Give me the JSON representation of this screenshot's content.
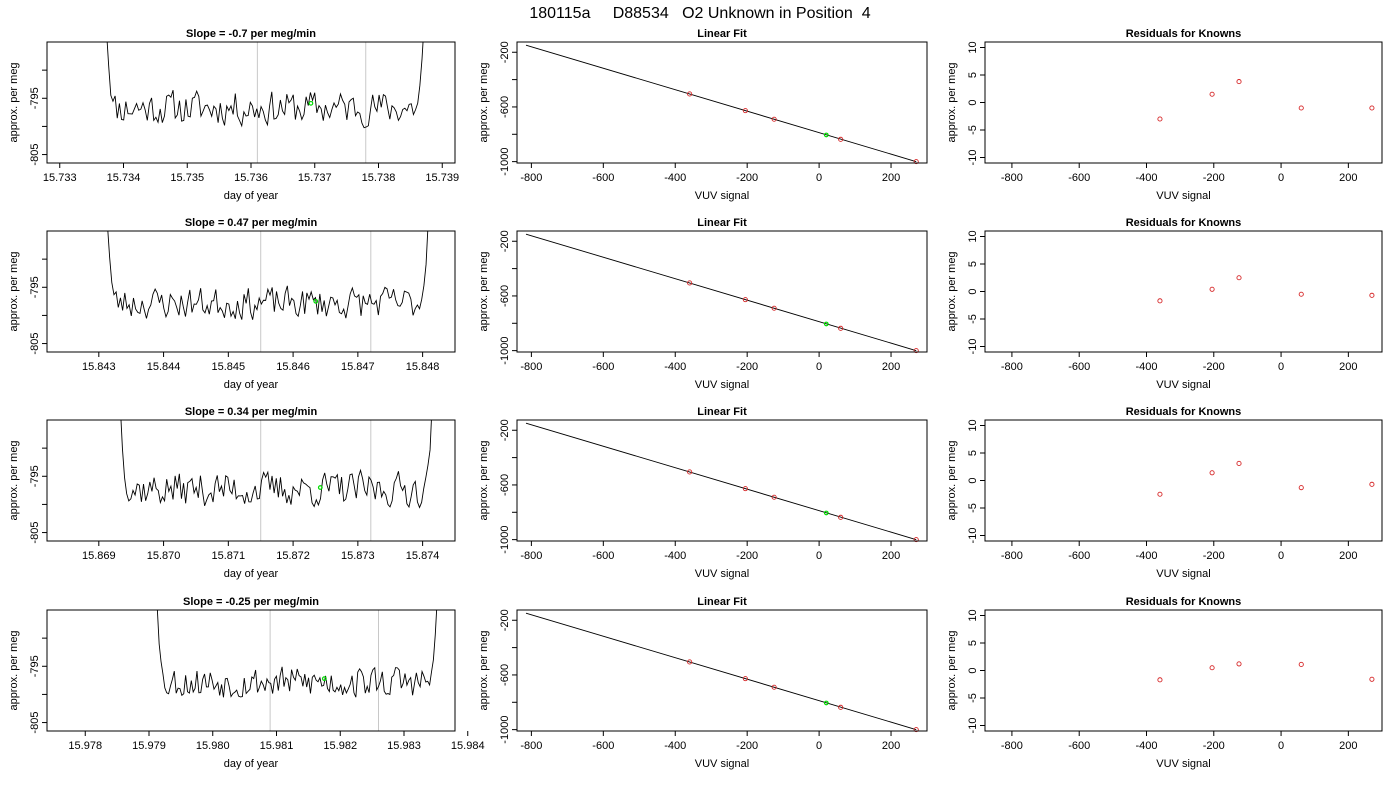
{
  "figure_title": "180115a     D88534   O2 Unknown in Position  4",
  "chart_data": [
    {
      "type": "line",
      "row": 0,
      "col": 0,
      "title": "Slope =  -0.7  per meg/min",
      "xlabel": "day of year",
      "ylabel": "approx. per meg",
      "xlim": [
        15.7328,
        15.7392
      ],
      "ylim": [
        -806.5,
        -785.0
      ],
      "x_ticks": [
        15.733,
        15.734,
        15.735,
        15.736,
        15.737,
        15.738,
        15.739
      ],
      "x_tick_labels": [
        "15.733",
        "15.734",
        "15.735",
        "15.736",
        "15.737",
        "15.738",
        "15.739"
      ],
      "y_ticks": [
        -795,
        -805
      ],
      "y_tick_labels": [
        "-795",
        "-805"
      ],
      "y_minor_ticks": [
        -790,
        -800
      ],
      "series_start": 15.7337,
      "series_end": 15.73875,
      "series_baseline": -796.7,
      "series_amplitude": 1.3,
      "seed": 11,
      "vlines": [
        15.7361,
        15.7378
      ],
      "marker": {
        "x": 15.73694,
        "y": -795.9,
        "color": "#00dd00"
      }
    },
    {
      "type": "line",
      "row": 0,
      "col": 1,
      "title": "Linear Fit",
      "xlabel": "VUV signal",
      "ylabel": "approx. per meg",
      "xlim": [
        -840,
        300
      ],
      "ylim": [
        -1010,
        -125
      ],
      "x_ticks": [
        -800,
        -600,
        -400,
        -200,
        0,
        200
      ],
      "x_tick_labels": [
        "-800",
        "-600",
        "-400",
        "-200",
        "0",
        "200"
      ],
      "y_ticks": [
        -200,
        -600,
        -1000
      ],
      "y_tick_labels": [
        "-200",
        "-600",
        "-1000"
      ],
      "y_minor_ticks": [
        -400,
        -800
      ],
      "fit_line": {
        "x": [
          -815,
          270
        ],
        "y": [
          -148,
          -1000
        ]
      },
      "points": {
        "x": [
          -360,
          -205,
          -125,
          60,
          270
        ],
        "y": [
          -505,
          -627,
          -690,
          -837,
          -1000
        ]
      },
      "point_color": "#d62728",
      "marker": {
        "x": 20,
        "y": -805,
        "color": "#00dd00"
      }
    },
    {
      "type": "scatter",
      "row": 0,
      "col": 2,
      "title": "Residuals for Knowns",
      "xlabel": "VUV signal",
      "ylabel": "approx. per meg",
      "xlim": [
        -880,
        300
      ],
      "ylim": [
        -11,
        11
      ],
      "x_ticks": [
        -800,
        -600,
        -400,
        -200,
        0,
        200
      ],
      "x_tick_labels": [
        "-800",
        "-600",
        "-400",
        "-200",
        "0",
        "200"
      ],
      "y_ticks": [
        10,
        5,
        0,
        -5,
        -10
      ],
      "y_tick_labels": [
        "10",
        "5",
        "0",
        "-5",
        "-10"
      ],
      "points": {
        "x": [
          -360,
          -205,
          -125,
          60,
          270
        ],
        "y": [
          -3.0,
          1.5,
          3.8,
          -1.0,
          -1.0
        ]
      },
      "point_color": "#d62728"
    },
    {
      "type": "line",
      "row": 1,
      "col": 0,
      "title": "Slope =  0.47  per meg/min",
      "xlabel": "day of year",
      "ylabel": "approx. per meg",
      "xlim": [
        15.8422,
        15.8485
      ],
      "ylim": [
        -806.5,
        -785.0
      ],
      "x_ticks": [
        15.843,
        15.844,
        15.845,
        15.846,
        15.847,
        15.848
      ],
      "x_tick_labels": [
        "15.843",
        "15.844",
        "15.845",
        "15.846",
        "15.847",
        "15.848"
      ],
      "y_ticks": [
        -795,
        -805
      ],
      "y_tick_labels": [
        "-795",
        "-805"
      ],
      "y_minor_ticks": [
        -790,
        -800
      ],
      "series_start": 15.8431,
      "series_end": 15.84812,
      "series_baseline": -797.8,
      "series_amplitude": 1.2,
      "seed": 23,
      "vlines": [
        15.8455,
        15.8472
      ],
      "marker": {
        "x": 15.84635,
        "y": -797.5,
        "color": "#00dd00"
      }
    },
    {
      "type": "line",
      "row": 1,
      "col": 1,
      "title": "Linear Fit",
      "xlabel": "VUV signal",
      "ylabel": "approx. per meg",
      "xlim": [
        -840,
        300
      ],
      "ylim": [
        -1010,
        -125
      ],
      "x_ticks": [
        -800,
        -600,
        -400,
        -200,
        0,
        200
      ],
      "x_tick_labels": [
        "-800",
        "-600",
        "-400",
        "-200",
        "0",
        "200"
      ],
      "y_ticks": [
        -200,
        -600,
        -1000
      ],
      "y_tick_labels": [
        "-200",
        "-600",
        "-1000"
      ],
      "y_minor_ticks": [
        -400,
        -800
      ],
      "fit_line": {
        "x": [
          -815,
          270
        ],
        "y": [
          -148,
          -1000
        ]
      },
      "points": {
        "x": [
          -360,
          -205,
          -125,
          60,
          270
        ],
        "y": [
          -505,
          -627,
          -690,
          -837,
          -1000
        ]
      },
      "point_color": "#d62728",
      "marker": {
        "x": 20,
        "y": -805,
        "color": "#00dd00"
      }
    },
    {
      "type": "scatter",
      "row": 1,
      "col": 2,
      "title": "Residuals for Knowns",
      "xlabel": "VUV signal",
      "ylabel": "approx. per meg",
      "xlim": [
        -880,
        300
      ],
      "ylim": [
        -11,
        11
      ],
      "x_ticks": [
        -800,
        -600,
        -400,
        -200,
        0,
        200
      ],
      "x_tick_labels": [
        "-800",
        "-600",
        "-400",
        "-200",
        "0",
        "200"
      ],
      "y_ticks": [
        10,
        5,
        0,
        -5,
        -10
      ],
      "y_tick_labels": [
        "10",
        "5",
        "0",
        "-5",
        "-10"
      ],
      "points": {
        "x": [
          -360,
          -205,
          -125,
          60,
          270
        ],
        "y": [
          -1.7,
          0.4,
          2.5,
          -0.5,
          -0.7
        ]
      },
      "point_color": "#d62728"
    },
    {
      "type": "line",
      "row": 2,
      "col": 0,
      "title": "Slope =  0.34  per meg/min",
      "xlabel": "day of year",
      "ylabel": "approx. per meg",
      "xlim": [
        15.8682,
        15.8745
      ],
      "ylim": [
        -806.5,
        -785.0
      ],
      "x_ticks": [
        15.869,
        15.87,
        15.871,
        15.872,
        15.873,
        15.874
      ],
      "x_tick_labels": [
        "15.869",
        "15.870",
        "15.871",
        "15.872",
        "15.873",
        "15.874"
      ],
      "y_ticks": [
        -795,
        -805
      ],
      "y_tick_labels": [
        "-795",
        "-805"
      ],
      "y_minor_ticks": [
        -790,
        -800
      ],
      "series_start": 15.8693,
      "series_end": 15.87418,
      "series_baseline": -797.3,
      "series_amplitude": 1.3,
      "seed": 37,
      "vlines": [
        15.8715,
        15.8732
      ],
      "marker": {
        "x": 15.87242,
        "y": -797.0,
        "color": "#00dd00"
      }
    },
    {
      "type": "line",
      "row": 2,
      "col": 1,
      "title": "Linear Fit",
      "xlabel": "VUV signal",
      "ylabel": "approx. per meg",
      "xlim": [
        -840,
        300
      ],
      "ylim": [
        -1010,
        -125
      ],
      "x_ticks": [
        -800,
        -600,
        -400,
        -200,
        0,
        200
      ],
      "x_tick_labels": [
        "-800",
        "-600",
        "-400",
        "-200",
        "0",
        "200"
      ],
      "y_ticks": [
        -200,
        -600,
        -1000
      ],
      "y_tick_labels": [
        "-200",
        "-600",
        "-1000"
      ],
      "y_minor_ticks": [
        -400,
        -800
      ],
      "fit_line": {
        "x": [
          -815,
          270
        ],
        "y": [
          -148,
          -1000
        ]
      },
      "points": {
        "x": [
          -360,
          -205,
          -125,
          60,
          270
        ],
        "y": [
          -505,
          -627,
          -690,
          -837,
          -1000
        ]
      },
      "point_color": "#d62728",
      "marker": {
        "x": 20,
        "y": -805,
        "color": "#00dd00"
      }
    },
    {
      "type": "scatter",
      "row": 2,
      "col": 2,
      "title": "Residuals for Knowns",
      "xlabel": "VUV signal",
      "ylabel": "approx. per meg",
      "xlim": [
        -880,
        300
      ],
      "ylim": [
        -11,
        11
      ],
      "x_ticks": [
        -800,
        -600,
        -400,
        -200,
        0,
        200
      ],
      "x_tick_labels": [
        "-800",
        "-600",
        "-400",
        "-200",
        "0",
        "200"
      ],
      "y_ticks": [
        10,
        5,
        0,
        -5,
        -10
      ],
      "y_tick_labels": [
        "10",
        "5",
        "0",
        "-5",
        "-10"
      ],
      "points": {
        "x": [
          -360,
          -205,
          -125,
          60,
          270
        ],
        "y": [
          -2.5,
          1.4,
          3.1,
          -1.3,
          -0.7
        ]
      },
      "point_color": "#d62728"
    },
    {
      "type": "line",
      "row": 3,
      "col": 0,
      "title": "Slope =  -0.25  per meg/min",
      "xlabel": "day of year",
      "ylabel": "approx. per meg",
      "xlim": [
        15.9774,
        15.9838
      ],
      "ylim": [
        -806.5,
        -785.0
      ],
      "x_ticks": [
        15.978,
        15.979,
        15.98,
        15.981,
        15.982,
        15.983,
        15.984
      ],
      "x_tick_labels": [
        "15.978",
        "15.979",
        "15.980",
        "15.981",
        "15.982",
        "15.983",
        "15.984"
      ],
      "y_ticks": [
        -795,
        -805
      ],
      "y_tick_labels": [
        "-795",
        "-805"
      ],
      "y_minor_ticks": [
        -790,
        -800
      ],
      "series_start": 15.9791,
      "series_end": 15.98355,
      "series_baseline": -797.8,
      "series_amplitude": 1.2,
      "seed": 53,
      "vlines": [
        15.9809,
        15.9826
      ],
      "marker": {
        "x": 15.98175,
        "y": -797.2,
        "color": "#00dd00"
      }
    },
    {
      "type": "line",
      "row": 3,
      "col": 1,
      "title": "Linear Fit",
      "xlabel": "VUV signal",
      "ylabel": "approx. per meg",
      "xlim": [
        -840,
        300
      ],
      "ylim": [
        -1010,
        -125
      ],
      "x_ticks": [
        -800,
        -600,
        -400,
        -200,
        0,
        200
      ],
      "x_tick_labels": [
        "-800",
        "-600",
        "-400",
        "-200",
        "0",
        "200"
      ],
      "y_ticks": [
        -200,
        -600,
        -1000
      ],
      "y_tick_labels": [
        "-200",
        "-600",
        "-1000"
      ],
      "y_minor_ticks": [
        -400,
        -800
      ],
      "fit_line": {
        "x": [
          -815,
          270
        ],
        "y": [
          -148,
          -1000
        ]
      },
      "points": {
        "x": [
          -360,
          -205,
          -125,
          60,
          270
        ],
        "y": [
          -505,
          -627,
          -690,
          -837,
          -1000
        ]
      },
      "point_color": "#d62728",
      "marker": {
        "x": 20,
        "y": -805,
        "color": "#00dd00"
      }
    },
    {
      "type": "scatter",
      "row": 3,
      "col": 2,
      "title": "Residuals for Knowns",
      "xlabel": "VUV signal",
      "ylabel": "approx. per meg",
      "xlim": [
        -880,
        300
      ],
      "ylim": [
        -11,
        11
      ],
      "x_ticks": [
        -800,
        -600,
        -400,
        -200,
        0,
        200
      ],
      "x_tick_labels": [
        "-800",
        "-600",
        "-400",
        "-200",
        "0",
        "200"
      ],
      "y_ticks": [
        10,
        5,
        0,
        -5,
        -10
      ],
      "y_tick_labels": [
        "10",
        "5",
        "0",
        "-5",
        "-10"
      ],
      "points": {
        "x": [
          -360,
          -205,
          -125,
          60,
          270
        ],
        "y": [
          -1.7,
          0.5,
          1.2,
          1.1,
          -1.6
        ]
      },
      "point_color": "#d62728"
    }
  ]
}
